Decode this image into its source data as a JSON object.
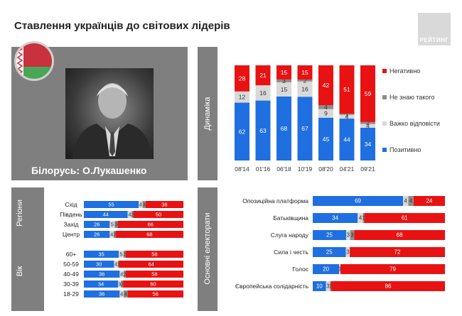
{
  "header": {
    "title": "Ставлення українців до світових лідерів",
    "logo_text": "РЕЙТИНГ"
  },
  "leader": {
    "name": "Білорусь: О.Лукашенко"
  },
  "tabs": {
    "dynamics": "Динаміка",
    "regions": "Регіони",
    "age": "Вік",
    "electorates": "Основні електорати"
  },
  "colors": {
    "positive": "#1f6fe0",
    "hard": "#d9d9d9",
    "unknown": "#8c8c8c",
    "negative": "#e81212",
    "panel": "#7f7f7f"
  },
  "chart_data": [
    {
      "type": "bar",
      "stacked": true,
      "categories": [
        "08'14",
        "01'16",
        "06'18",
        "10'19",
        "08'20",
        "04'21",
        "09'21"
      ],
      "series": [
        {
          "name": "Позитивно",
          "values": [
            62,
            63,
            68,
            67,
            45,
            44,
            34
          ]
        },
        {
          "name": "Важко відповісти",
          "values": [
            12,
            16,
            15,
            16,
            9,
            4,
            4
          ]
        },
        {
          "name": "Не знаю такого",
          "values": [
            0,
            0,
            3,
            2,
            4,
            1,
            2
          ]
        },
        {
          "name": "Негативно",
          "values": [
            28,
            21,
            15,
            15,
            42,
            51,
            59
          ]
        }
      ],
      "legend_order": [
        "Негативно",
        "Не знаю такого",
        "Важко відповісти",
        "Позитивно"
      ],
      "legend_position": "right"
    },
    {
      "type": "bar",
      "orientation": "horizontal",
      "stacked": true,
      "groups": [
        {
          "label": "Регіони",
          "categories": [
            "Схід",
            "Південь",
            "Захід",
            "Центр"
          ],
          "series": [
            {
              "name": "Позитивно",
              "values": [
                55,
                44,
                26,
                26
              ]
            },
            {
              "name": "Важко відповісти",
              "values": [
                4,
                4,
                5,
                4
              ]
            },
            {
              "name": "Не знаю такого",
              "values": [
                3,
                2,
                3,
                2
              ]
            },
            {
              "name": "Негативно",
              "values": [
                38,
                50,
                66,
                68
              ]
            }
          ]
        },
        {
          "label": "Вік",
          "categories": [
            "60+",
            "50-59",
            "40-49",
            "30-39",
            "18-29"
          ],
          "series": [
            {
              "name": "Позитивно",
              "values": [
                35,
                30,
                36,
                34,
                36
              ]
            },
            {
              "name": "Важко відповісти",
              "values": [
                5,
                4,
                4,
                3,
                4
              ]
            },
            {
              "name": "Не знаю такого",
              "values": [
                2,
                1,
                2,
                2,
                4
              ]
            },
            {
              "name": "Негативно",
              "values": [
                58,
                64,
                58,
                60,
                56
              ]
            }
          ]
        }
      ]
    },
    {
      "type": "bar",
      "orientation": "horizontal",
      "stacked": true,
      "categories": [
        "Опозиційна платформа",
        "Батьківщина",
        "Слуга народу",
        "Сила і честь",
        "Голос",
        "Європейська солідарність"
      ],
      "series": [
        {
          "name": "Позитивно",
          "values": [
            69,
            34,
            25,
            25,
            20,
            10
          ]
        },
        {
          "name": "Важко відповісти",
          "values": [
            4,
            4,
            3,
            3,
            1,
            3
          ]
        },
        {
          "name": "Не знаю такого",
          "values": [
            4,
            1,
            3,
            0,
            0,
            1
          ]
        },
        {
          "name": "Негативно",
          "values": [
            24,
            61,
            68,
            72,
            79,
            86
          ]
        }
      ]
    }
  ]
}
